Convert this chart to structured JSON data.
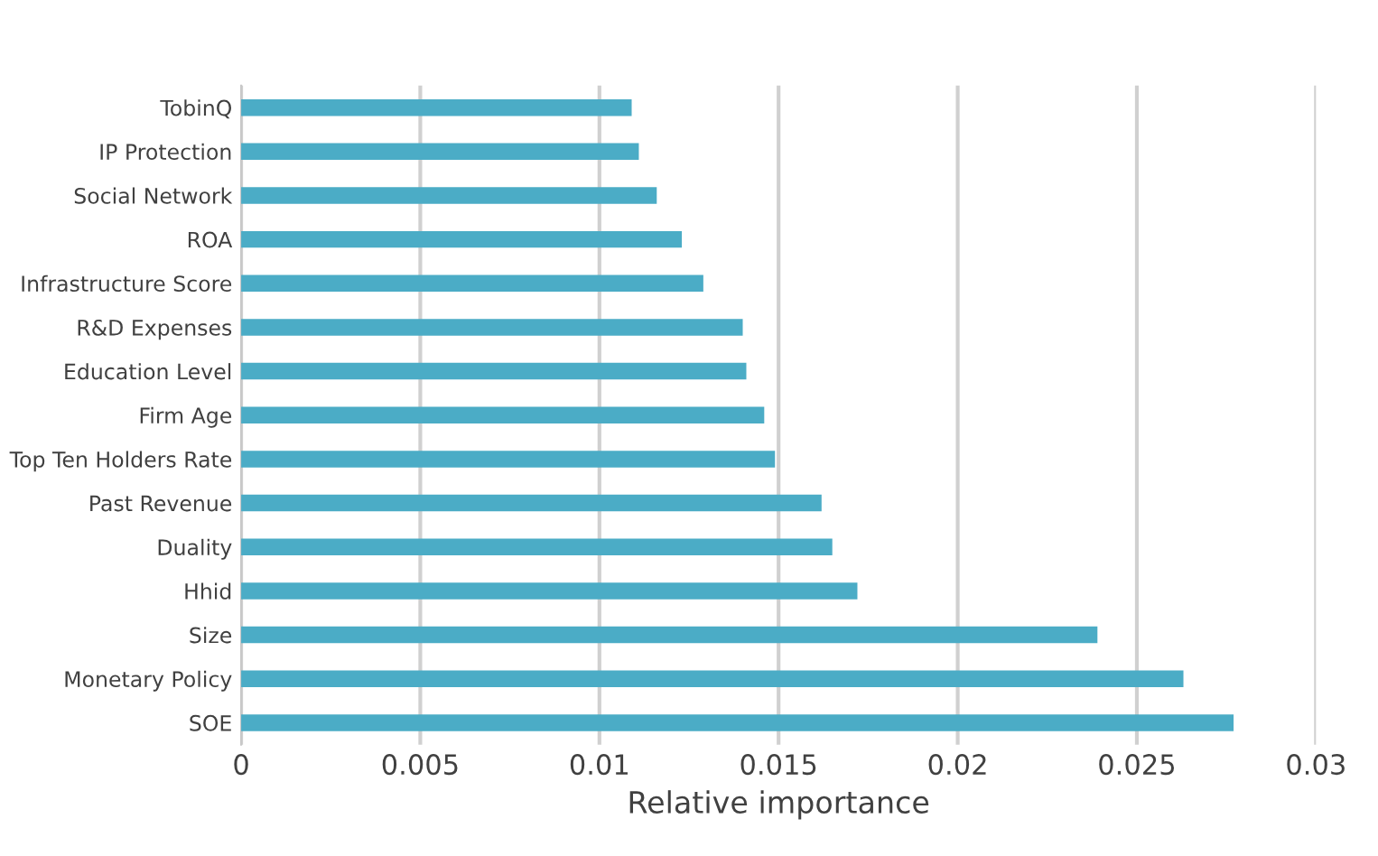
{
  "chart_data": {
    "type": "bar",
    "orientation": "horizontal",
    "categories": [
      "TobinQ",
      "IP Protection",
      "Social Network",
      "ROA",
      "Infrastructure Score",
      "R&D Expenses",
      "Education Level",
      "Firm Age",
      "Top Ten Holders Rate",
      "Past Revenue",
      "Duality",
      "Hhid",
      "Size",
      "Monetary Policy",
      "SOE"
    ],
    "values": [
      0.0109,
      0.0111,
      0.0116,
      0.0123,
      0.0129,
      0.014,
      0.0141,
      0.0146,
      0.0149,
      0.0162,
      0.0165,
      0.0172,
      0.0239,
      0.0263,
      0.0277
    ],
    "color": "#4bacc6",
    "xlabel": "Relative importance",
    "xlim": [
      0,
      0.03
    ],
    "xticks": [
      0,
      0.005,
      0.01,
      0.015,
      0.02,
      0.025,
      0.03
    ],
    "grid": "x",
    "legend": false
  }
}
